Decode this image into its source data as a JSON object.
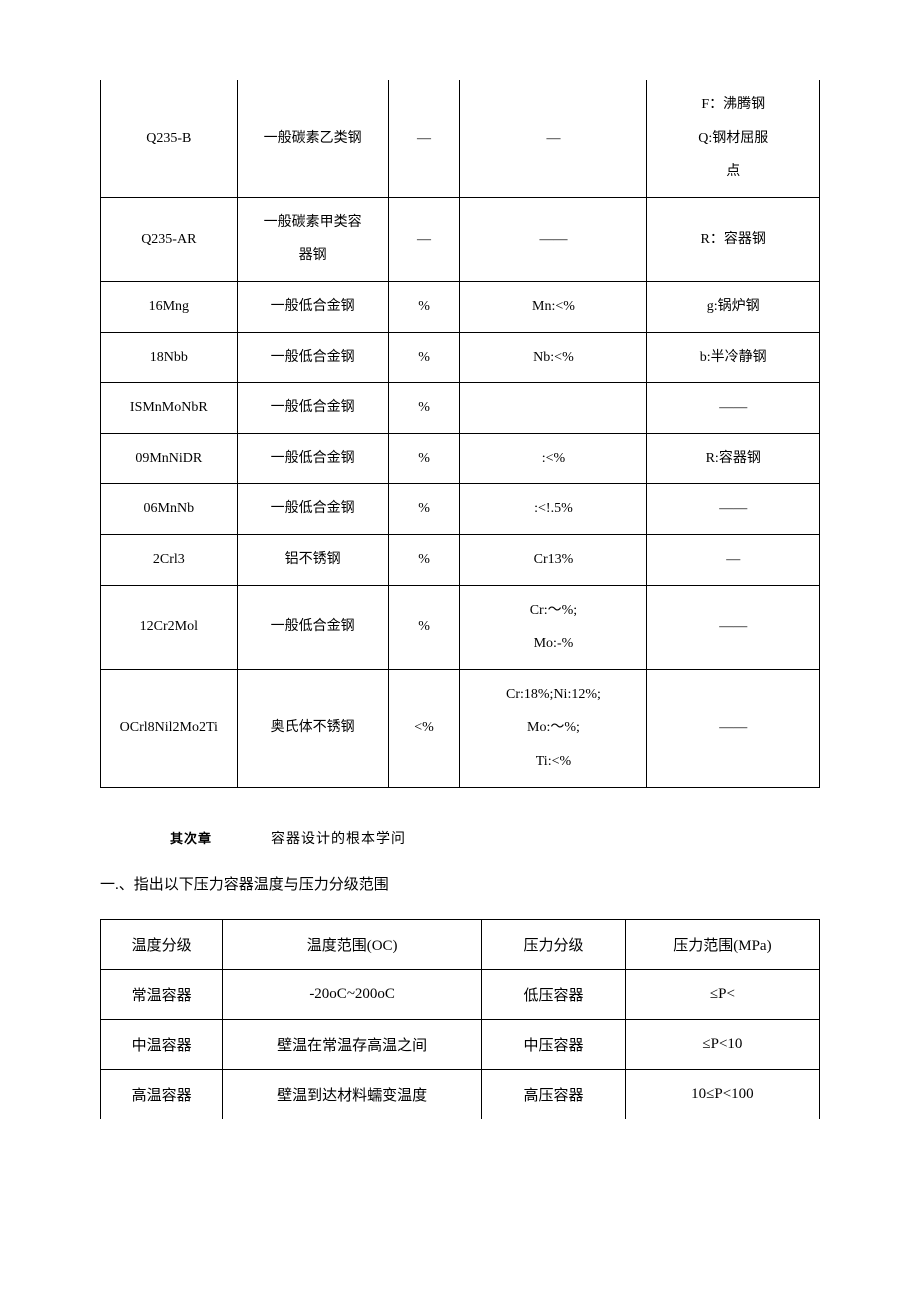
{
  "table1": {
    "rows": [
      {
        "c1": "Q235-B",
        "c2": "一般碳素乙类钢",
        "c3": "—",
        "c4": "—",
        "c5": "F：沸腾钢\nQ:钢材屈服\n点",
        "c5_multiline": true
      },
      {
        "c1": "Q235-AR",
        "c2": "一般碳素甲类容\n器钢",
        "c2_multiline": true,
        "c3": "—",
        "c4": "——",
        "c5": "R：容器钢"
      },
      {
        "c1": "16Mng",
        "c2": "一般低合金钢",
        "c3": "%",
        "c4": "Mn:<%",
        "c5": "g:锅炉钢"
      },
      {
        "c1": "18Nbb",
        "c2": "一般低合金钢",
        "c3": "%",
        "c4": "Nb:<%",
        "c5": "b:半冷静钢"
      },
      {
        "c1": "ISMnMoNbR",
        "c2": "一般低合金钢",
        "c3": "%",
        "c4": "",
        "c5": "——"
      },
      {
        "c1": "09MnNiDR",
        "c2": "一般低合金钢",
        "c3": "%",
        "c4": ":<%",
        "c5": "R:容器钢"
      },
      {
        "c1": "06MnNb",
        "c2": "一般低合金钢",
        "c3": "%",
        "c4": ":<!.5%",
        "c5": "——"
      },
      {
        "c1": "2Crl3",
        "c2": "铝不锈钢",
        "c3": "%",
        "c4": "Cr13%",
        "c5": "—"
      },
      {
        "c1": "12Cr2Mol",
        "c2": "一般低合金钢",
        "c3": "%",
        "c4": "Cr:〜%;\nMo:-%",
        "c4_multiline": true,
        "c5": "——"
      },
      {
        "c1": "OCrl8Nil2Mo2Ti",
        "c2": "奥氏体不锈钢",
        "c3": "<%",
        "c4": "Cr:18%;Ni:12%;\nMo:〜%;\nTi:<%",
        "c4_multiline": true,
        "c5": "——"
      }
    ]
  },
  "section": {
    "bold_label": "其次章",
    "title": "容器设计的根本学问"
  },
  "subtitle": "一.、指出以下压力容器温度与压力分级范围",
  "table2": {
    "headers": {
      "c1": "温度分级",
      "c2": "温度范围(OC)",
      "c3": "压力分级",
      "c4": "压力范围(MPa)"
    },
    "rows": [
      {
        "c1": "常温容器",
        "c2": "-20oC~200oC",
        "c3": "低压容器",
        "c4": "≤P<"
      },
      {
        "c1": "中温容器",
        "c2": "壁温在常温存高温之间",
        "c3": "中压容器",
        "c4": "≤P<10"
      },
      {
        "c1": "高温容器",
        "c2": "壁温到达材料蠕变温度",
        "c3": "高压容器",
        "c4": "10≤P<100"
      }
    ]
  }
}
